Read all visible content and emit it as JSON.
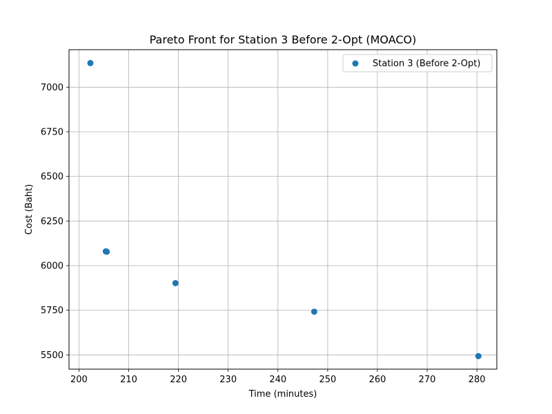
{
  "chart_data": {
    "type": "scatter",
    "title": "Pareto Front for Station 3 Before 2-Opt (MOACO)",
    "xlabel": "Time (minutes)",
    "ylabel": "Cost (Baht)",
    "xlim": [
      198,
      284
    ],
    "ylim": [
      5420,
      7210
    ],
    "xticks": [
      200,
      210,
      220,
      230,
      240,
      250,
      260,
      270,
      280
    ],
    "yticks": [
      5500,
      5750,
      6000,
      6250,
      6500,
      6750,
      7000
    ],
    "grid": true,
    "legend_position": "top-right",
    "series": [
      {
        "name": "Station 3 (Before 2-Opt)",
        "color": "#1f77b4",
        "x": [
          202.3,
          205.4,
          205.6,
          219.4,
          247.3,
          280.3
        ],
        "y": [
          7135,
          6080,
          6078,
          5902,
          5742,
          5493
        ]
      }
    ]
  }
}
